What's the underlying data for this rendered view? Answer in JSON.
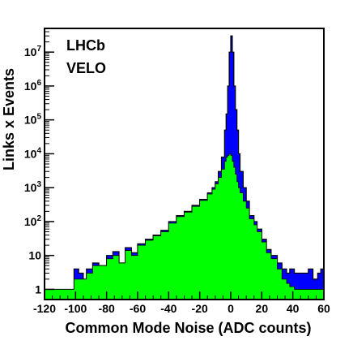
{
  "chart_data": {
    "type": "histogram",
    "title": "",
    "xlabel": "Common Mode Noise (ADC counts)",
    "ylabel": "Links x Events",
    "annotations": [
      "LHCb",
      "VELO"
    ],
    "xlim": [
      -120,
      60
    ],
    "ylim": [
      0.5,
      50000000
    ],
    "yscale": "log",
    "x_ticks": [
      "-120",
      "-100",
      "-80",
      "-60",
      "-40",
      "-20",
      "0",
      "20",
      "40",
      "60"
    ],
    "y_ticks": [
      {
        "base": "1",
        "exp": ""
      },
      {
        "base": "10",
        "exp": ""
      },
      {
        "base": "10",
        "exp": "2"
      },
      {
        "base": "10",
        "exp": "3"
      },
      {
        "base": "10",
        "exp": "4"
      },
      {
        "base": "10",
        "exp": "5"
      },
      {
        "base": "10",
        "exp": "6"
      },
      {
        "base": "10",
        "exp": "7"
      }
    ],
    "series": [
      {
        "color": "#0000ff",
        "points": [
          [
            -120,
            1
          ],
          [
            -115,
            1
          ],
          [
            -108,
            1
          ],
          [
            -103,
            1
          ],
          [
            -101,
            4
          ],
          [
            -98,
            3
          ],
          [
            -95,
            2
          ],
          [
            -93,
            4
          ],
          [
            -91,
            4
          ],
          [
            -89,
            6
          ],
          [
            -85,
            5
          ],
          [
            -80,
            10
          ],
          [
            -76,
            13
          ],
          [
            -72,
            6
          ],
          [
            -68,
            17
          ],
          [
            -64,
            12
          ],
          [
            -60,
            22
          ],
          [
            -55,
            30
          ],
          [
            -50,
            40
          ],
          [
            -45,
            55
          ],
          [
            -40,
            100
          ],
          [
            -35,
            150
          ],
          [
            -30,
            200
          ],
          [
            -25,
            300
          ],
          [
            -20,
            450
          ],
          [
            -15,
            700
          ],
          [
            -12,
            1000
          ],
          [
            -10,
            1500
          ],
          [
            -8,
            3000
          ],
          [
            -6,
            8000
          ],
          [
            -4,
            50000
          ],
          [
            -3,
            150000
          ],
          [
            -2,
            1000000
          ],
          [
            -1,
            10000000
          ],
          [
            0,
            30000000
          ],
          [
            1,
            10000000
          ],
          [
            2,
            1000000
          ],
          [
            3,
            200000
          ],
          [
            4,
            50000
          ],
          [
            5,
            10000
          ],
          [
            6,
            3000
          ],
          [
            8,
            1000
          ],
          [
            10,
            400
          ],
          [
            12,
            150
          ],
          [
            15,
            100
          ],
          [
            17,
            60
          ],
          [
            20,
            30
          ],
          [
            23,
            15
          ],
          [
            26,
            10
          ],
          [
            30,
            6
          ],
          [
            33,
            4
          ],
          [
            36,
            3
          ],
          [
            38,
            4
          ],
          [
            41,
            3
          ],
          [
            44,
            3
          ],
          [
            47,
            3
          ],
          [
            50,
            4
          ],
          [
            53,
            2
          ],
          [
            56,
            3
          ],
          [
            58,
            4
          ],
          [
            60,
            1
          ]
        ]
      },
      {
        "color": "#00ff00",
        "points": [
          [
            -120,
            1
          ],
          [
            -115,
            1
          ],
          [
            -108,
            1
          ],
          [
            -103,
            1
          ],
          [
            -101,
            2
          ],
          [
            -98,
            2
          ],
          [
            -95,
            2
          ],
          [
            -93,
            3
          ],
          [
            -91,
            3
          ],
          [
            -89,
            5
          ],
          [
            -85,
            5
          ],
          [
            -80,
            8
          ],
          [
            -76,
            10
          ],
          [
            -72,
            6
          ],
          [
            -68,
            14
          ],
          [
            -64,
            10
          ],
          [
            -60,
            20
          ],
          [
            -55,
            28
          ],
          [
            -50,
            38
          ],
          [
            -45,
            50
          ],
          [
            -40,
            90
          ],
          [
            -35,
            140
          ],
          [
            -30,
            190
          ],
          [
            -25,
            280
          ],
          [
            -20,
            420
          ],
          [
            -15,
            650
          ],
          [
            -12,
            900
          ],
          [
            -10,
            1300
          ],
          [
            -8,
            2000
          ],
          [
            -6,
            3500
          ],
          [
            -4,
            6000
          ],
          [
            -3,
            8000
          ],
          [
            -2,
            9000
          ],
          [
            -1,
            10000
          ],
          [
            0,
            9000
          ],
          [
            1,
            6000
          ],
          [
            2,
            4000
          ],
          [
            3,
            2500
          ],
          [
            4,
            1500
          ],
          [
            5,
            1000
          ],
          [
            6,
            700
          ],
          [
            8,
            400
          ],
          [
            10,
            250
          ],
          [
            12,
            120
          ],
          [
            15,
            80
          ],
          [
            17,
            50
          ],
          [
            20,
            25
          ],
          [
            23,
            12
          ],
          [
            26,
            8
          ],
          [
            30,
            4
          ],
          [
            33,
            2
          ],
          [
            36,
            1.5
          ],
          [
            38,
            1.2
          ],
          [
            41,
            1
          ],
          [
            44,
            1
          ],
          [
            47,
            1
          ],
          [
            50,
            1
          ],
          [
            53,
            1
          ],
          [
            56,
            1
          ],
          [
            58,
            1
          ],
          [
            60,
            1
          ]
        ]
      }
    ]
  }
}
